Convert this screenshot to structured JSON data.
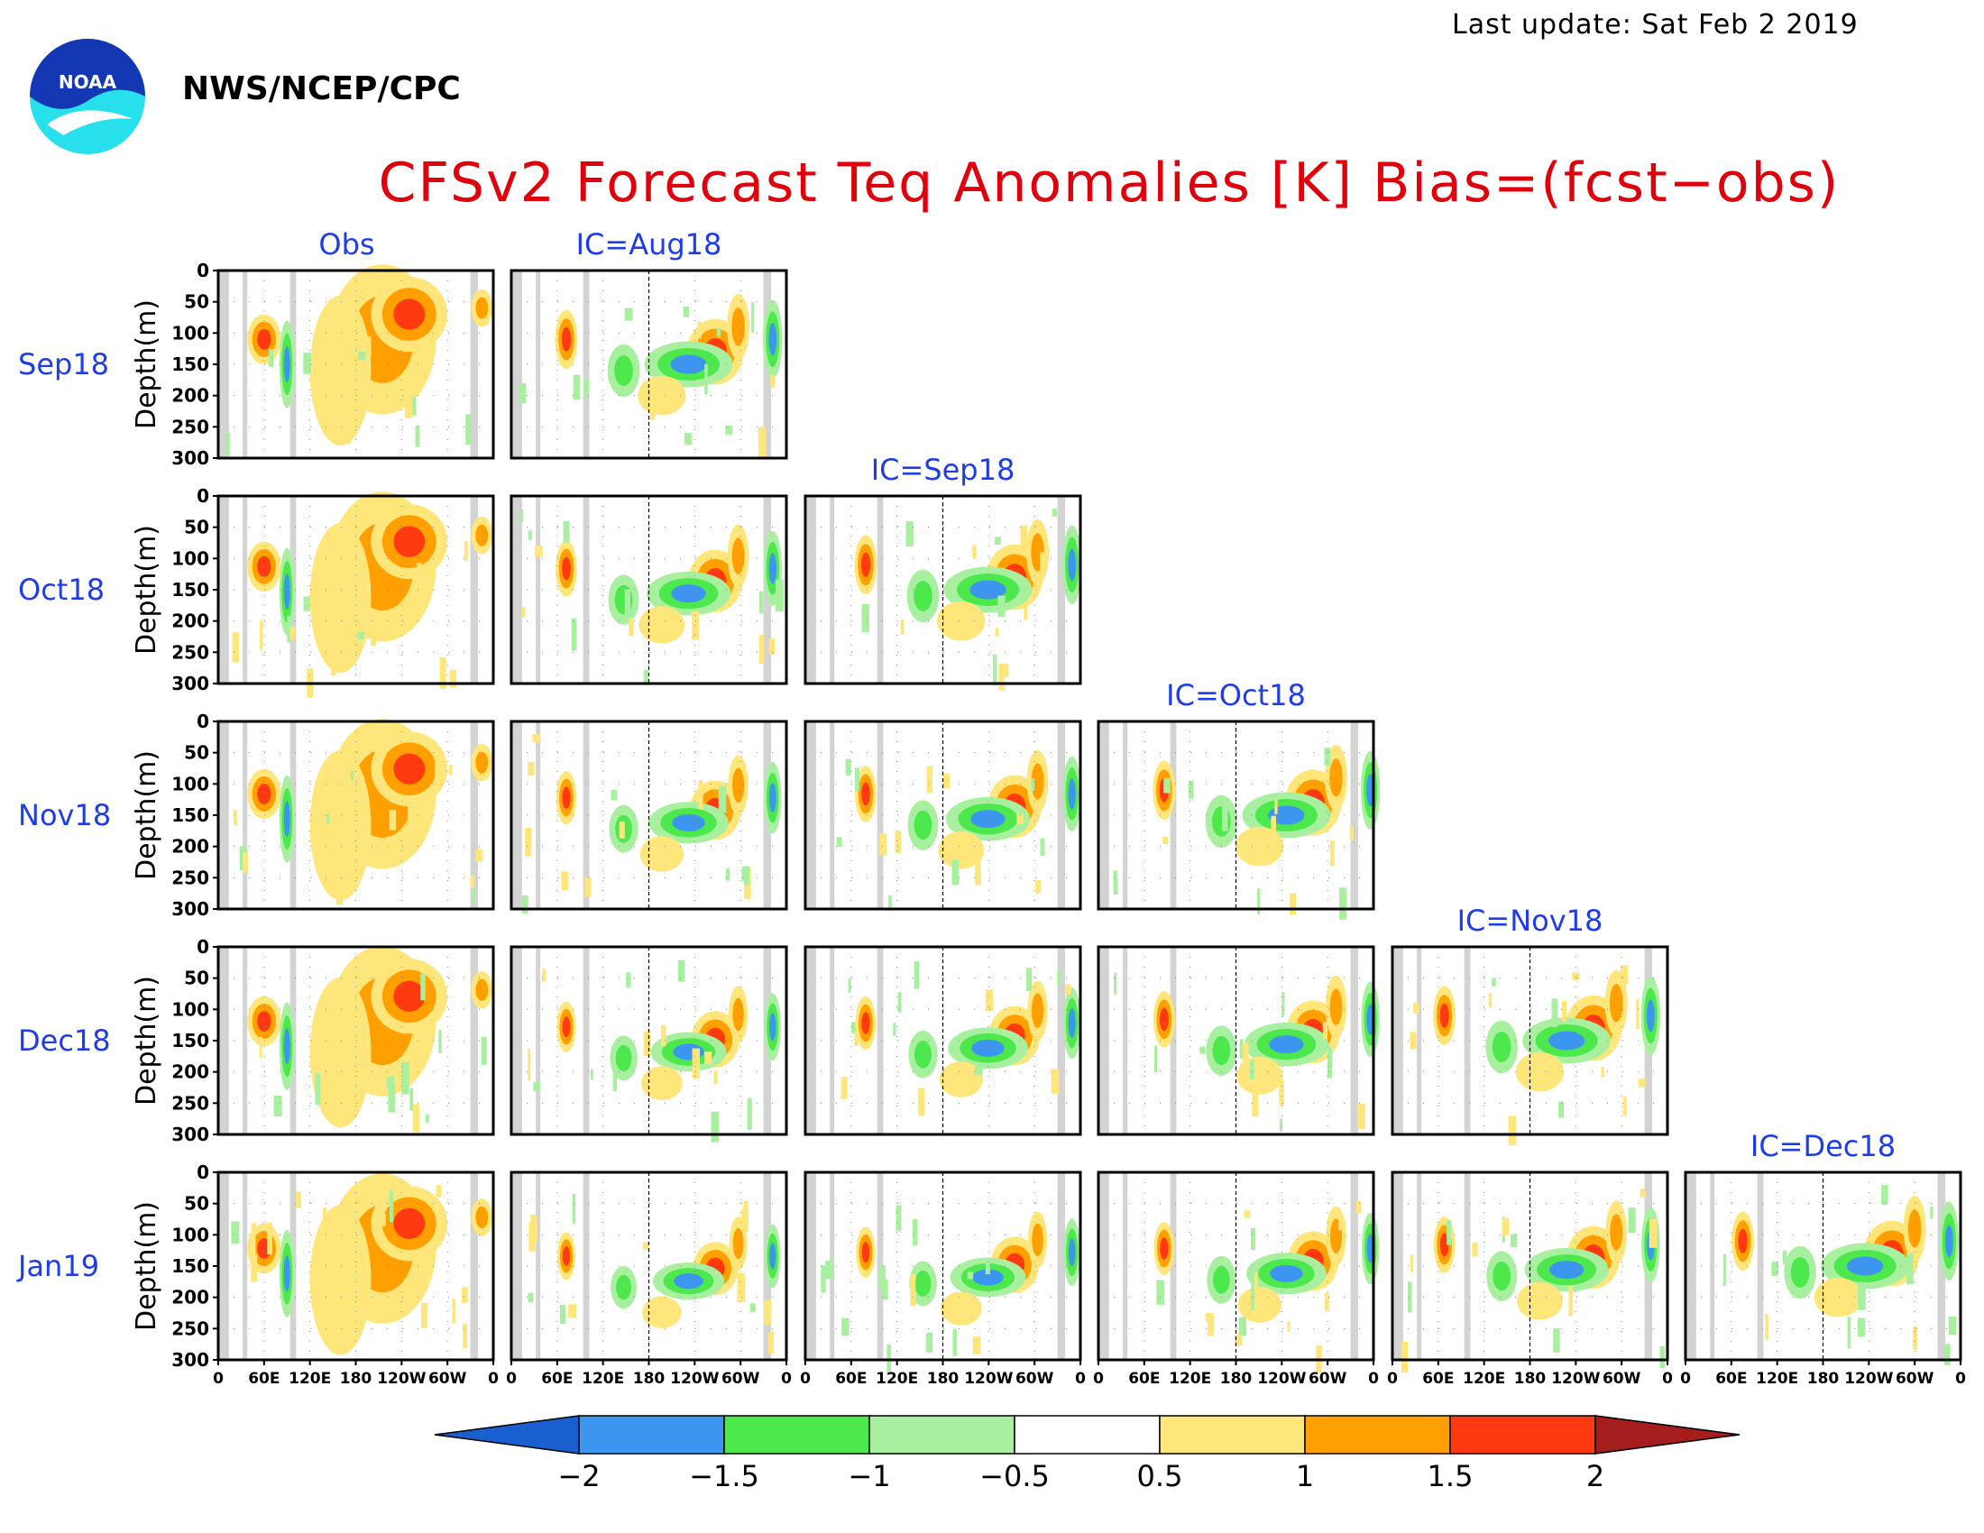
{
  "header": {
    "last_update": "Last update: Sat Feb 2 2019",
    "agency": "NWS/NCEP/CPC",
    "logo_text": "NOAA",
    "title": "CFSv2 Forecast Teq Anomalies [K] Bias=(fcst−obs)"
  },
  "chart_data": {
    "type": "heatmap",
    "description_columns": [
      "Obs",
      "IC=Aug18",
      "IC=Sep18",
      "IC=Oct18",
      "IC=Nov18",
      "IC=Dec18"
    ],
    "rows": [
      "Sep18",
      "Oct18",
      "Nov18",
      "Dec18",
      "Jan19"
    ],
    "ylabel": "Depth(m)",
    "y_ticks": [
      "0",
      "50",
      "100",
      "150",
      "200",
      "250",
      "300"
    ],
    "ylim": [
      300,
      0
    ],
    "x_ticks": [
      "0",
      "60E",
      "120E",
      "180",
      "120W",
      "60W",
      "0"
    ],
    "xlim": [
      0,
      360
    ],
    "land_bands_deg": [
      [
        2,
        14
      ],
      [
        32,
        38
      ],
      [
        94,
        102
      ],
      [
        330,
        340
      ]
    ],
    "dateline_deg": 180,
    "panels_present": [
      [
        true,
        true,
        false,
        false,
        false,
        false
      ],
      [
        true,
        true,
        true,
        false,
        false,
        false
      ],
      [
        true,
        true,
        true,
        true,
        false,
        false
      ],
      [
        true,
        true,
        true,
        true,
        true,
        false
      ],
      [
        true,
        true,
        true,
        true,
        true,
        true
      ]
    ],
    "colorbar": {
      "levels": [
        "−2",
        "−1.5",
        "−1",
        "−0.5",
        "0.5",
        "1",
        "1.5",
        "2"
      ],
      "colors": [
        "#1a5fd0",
        "#3c96f0",
        "#4ce84c",
        "#a8f0a0",
        "#ffffff",
        "#ffe67a",
        "#ffa000",
        "#ff3a10",
        "#a51e1e"
      ]
    },
    "land_color": "#d3d3d3"
  }
}
